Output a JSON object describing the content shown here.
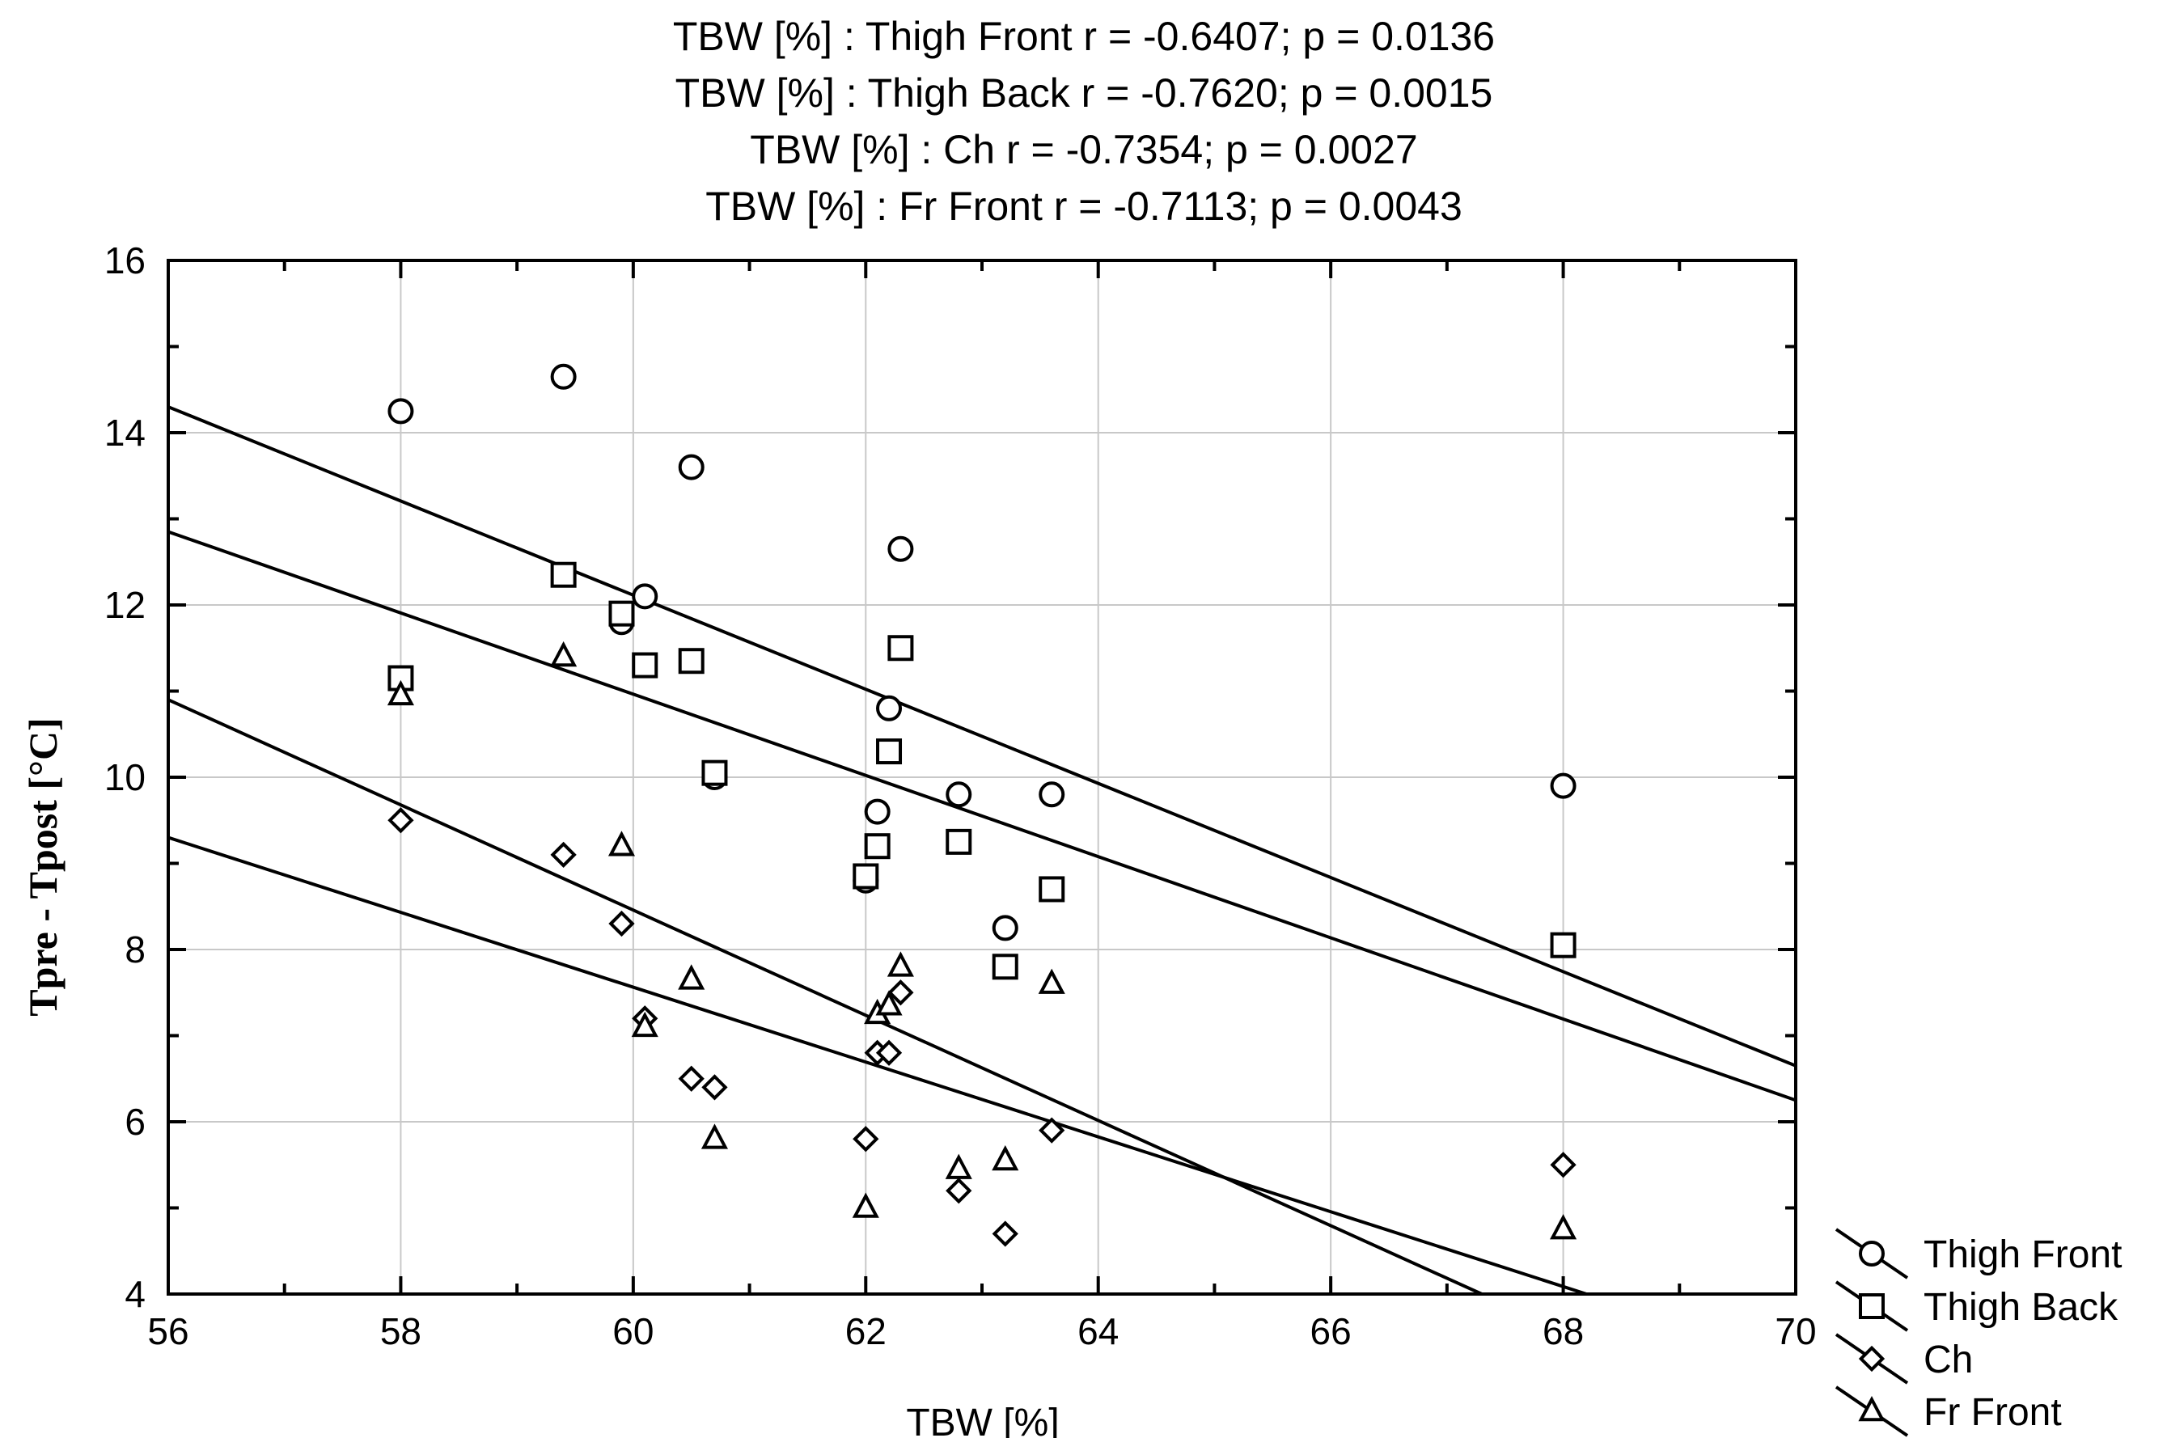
{
  "chart_data": {
    "type": "scatter",
    "title_lines": [
      "TBW [%] : Thigh Front  r = -0.6407; p = 0.0136",
      "TBW [%] : Thigh Back  r = -0.7620; p = 0.0015",
      "TBW [%] : Ch   r = -0.7354; p = 0.0027",
      "TBW [%] : Fr Front   r = -0.7113; p = 0.0043"
    ],
    "xlabel": "TBW [%]",
    "ylabel": "Tpre -  Tpost [°C]",
    "xlim": [
      56,
      70
    ],
    "ylim": [
      4,
      16
    ],
    "x_major_ticks": [
      56,
      58,
      60,
      62,
      64,
      66,
      68,
      70
    ],
    "y_major_ticks": [
      4,
      6,
      8,
      10,
      12,
      14,
      16
    ],
    "x_tick_labels": [
      "56",
      "58",
      "60",
      "62",
      "64",
      "66",
      "68",
      "70"
    ],
    "y_tick_labels": [
      "4",
      "6",
      "8",
      "10",
      "12",
      "14",
      "16"
    ],
    "grid": true,
    "legend_position": "bottom-right-outside",
    "series": [
      {
        "name": "Thigh Front",
        "marker": "circle",
        "points": [
          [
            58.0,
            14.25
          ],
          [
            59.4,
            14.65
          ],
          [
            59.9,
            11.8
          ],
          [
            60.1,
            12.1
          ],
          [
            60.5,
            13.6
          ],
          [
            60.7,
            10.0
          ],
          [
            62.0,
            8.8
          ],
          [
            62.1,
            9.6
          ],
          [
            62.2,
            10.8
          ],
          [
            62.3,
            12.65
          ],
          [
            62.8,
            9.8
          ],
          [
            63.2,
            8.25
          ],
          [
            63.6,
            9.8
          ],
          [
            68.0,
            9.9
          ]
        ],
        "fit": [
          [
            56,
            14.3
          ],
          [
            70,
            6.65
          ]
        ]
      },
      {
        "name": "Thigh Back",
        "marker": "square",
        "points": [
          [
            58.0,
            11.15
          ],
          [
            59.4,
            12.35
          ],
          [
            59.9,
            11.9
          ],
          [
            60.1,
            11.3
          ],
          [
            60.5,
            11.35
          ],
          [
            60.7,
            10.05
          ],
          [
            62.0,
            8.85
          ],
          [
            62.1,
            9.2
          ],
          [
            62.2,
            10.3
          ],
          [
            62.3,
            11.5
          ],
          [
            62.8,
            9.25
          ],
          [
            63.2,
            7.8
          ],
          [
            63.6,
            8.7
          ],
          [
            68.0,
            8.05
          ]
        ],
        "fit": [
          [
            56,
            12.85
          ],
          [
            70,
            6.25
          ]
        ]
      },
      {
        "name": "Ch",
        "marker": "diamond",
        "points": [
          [
            58.0,
            9.5
          ],
          [
            59.4,
            9.1
          ],
          [
            59.9,
            8.3
          ],
          [
            60.1,
            7.2
          ],
          [
            60.5,
            6.5
          ],
          [
            60.7,
            6.4
          ],
          [
            62.0,
            5.8
          ],
          [
            62.1,
            6.8
          ],
          [
            62.2,
            6.8
          ],
          [
            62.3,
            7.5
          ],
          [
            62.8,
            5.2
          ],
          [
            63.2,
            4.7
          ],
          [
            63.6,
            5.9
          ],
          [
            68.0,
            5.5
          ]
        ],
        "fit": [
          [
            56,
            10.9
          ],
          [
            67.3,
            4.0
          ]
        ]
      },
      {
        "name": "Fr Front",
        "marker": "triangle",
        "points": [
          [
            58.0,
            10.95
          ],
          [
            59.4,
            11.4
          ],
          [
            59.9,
            9.2
          ],
          [
            60.1,
            7.1
          ],
          [
            60.5,
            7.65
          ],
          [
            60.7,
            5.8
          ],
          [
            62.0,
            5.0
          ],
          [
            62.1,
            7.25
          ],
          [
            62.2,
            7.35
          ],
          [
            62.3,
            7.8
          ],
          [
            62.8,
            5.45
          ],
          [
            63.2,
            5.55
          ],
          [
            63.6,
            7.6
          ],
          [
            68.0,
            4.75
          ]
        ],
        "fit": [
          [
            56,
            9.3
          ],
          [
            68.2,
            4.0
          ]
        ]
      }
    ]
  }
}
